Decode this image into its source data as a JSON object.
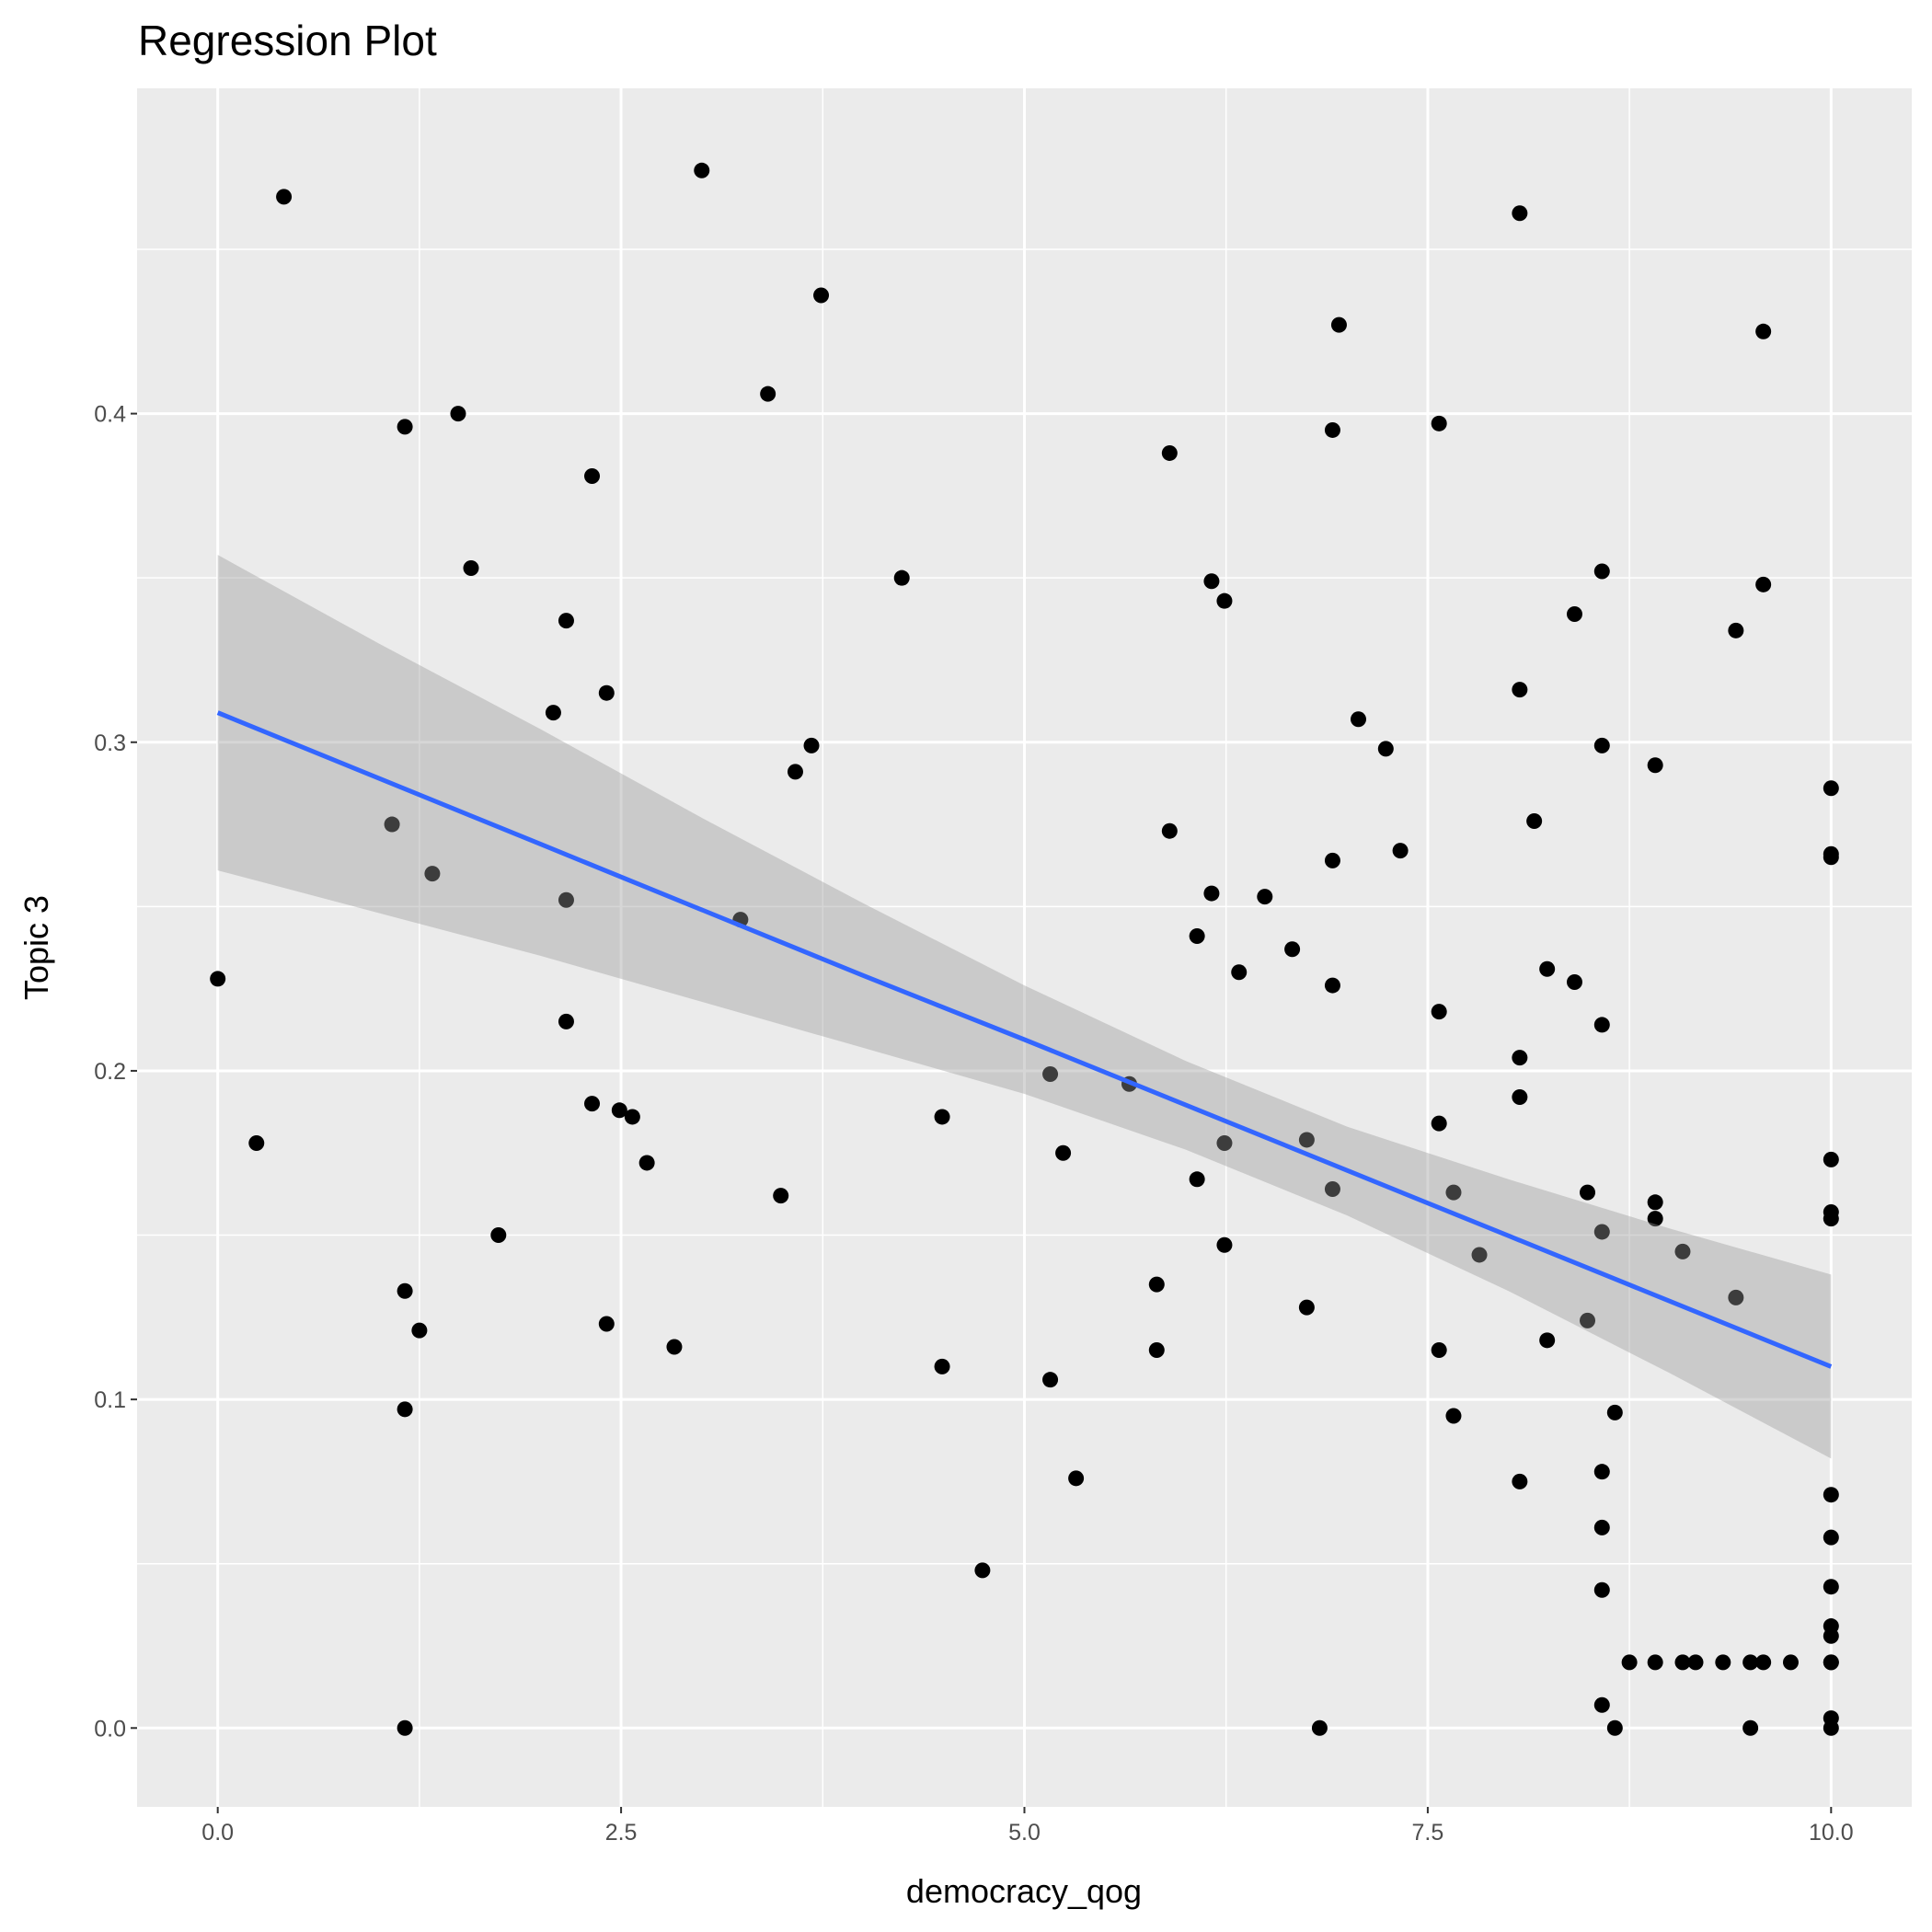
{
  "chart_data": {
    "type": "scatter",
    "title": "Regression Plot",
    "xlabel": "democracy_qog",
    "ylabel": "Topic 3",
    "xlim": [
      -0.5,
      10.5
    ],
    "ylim": [
      -0.024,
      0.499
    ],
    "x_ticks": [
      0,
      2.5,
      5,
      7.5,
      10
    ],
    "x_tick_labels": [
      "0.0",
      "2.5",
      "5.0",
      "7.5",
      "10.0"
    ],
    "y_ticks": [
      0,
      0.1,
      0.2,
      0.3,
      0.4
    ],
    "y_tick_labels": [
      "0.0",
      "0.1",
      "0.2",
      "0.3",
      "0.4"
    ],
    "grid": true,
    "colors": {
      "panel": "#ebebeb",
      "grid": "#ffffff",
      "point": "#000000",
      "line": "#3366ff",
      "ribbon": "#999999"
    },
    "points": [
      [
        0.41,
        0.466
      ],
      [
        3.0,
        0.474
      ],
      [
        3.74,
        0.436
      ],
      [
        3.41,
        0.406
      ],
      [
        1.16,
        0.396
      ],
      [
        1.49,
        0.4
      ],
      [
        2.32,
        0.381
      ],
      [
        1.57,
        0.353
      ],
      [
        2.16,
        0.337
      ],
      [
        2.41,
        0.315
      ],
      [
        2.08,
        0.309
      ],
      [
        3.68,
        0.299
      ],
      [
        3.58,
        0.291
      ],
      [
        1.08,
        0.275
      ],
      [
        1.33,
        0.26
      ],
      [
        2.16,
        0.252
      ],
      [
        3.24,
        0.246
      ],
      [
        4.24,
        0.35
      ],
      [
        0.0,
        0.228
      ],
      [
        0.24,
        0.178
      ],
      [
        2.16,
        0.215
      ],
      [
        2.32,
        0.19
      ],
      [
        2.49,
        0.188
      ],
      [
        2.57,
        0.186
      ],
      [
        2.66,
        0.172
      ],
      [
        3.49,
        0.162
      ],
      [
        1.74,
        0.15
      ],
      [
        1.16,
        0.133
      ],
      [
        1.25,
        0.121
      ],
      [
        2.41,
        0.123
      ],
      [
        2.83,
        0.116
      ],
      [
        1.16,
        0.097
      ],
      [
        1.16,
        0.0
      ],
      [
        4.49,
        0.186
      ],
      [
        4.49,
        0.11
      ],
      [
        4.74,
        0.048
      ],
      [
        5.16,
        0.199
      ],
      [
        5.24,
        0.175
      ],
      [
        5.16,
        0.106
      ],
      [
        5.32,
        0.076
      ],
      [
        5.65,
        0.196
      ],
      [
        5.9,
        0.388
      ],
      [
        5.9,
        0.273
      ],
      [
        6.16,
        0.349
      ],
      [
        6.24,
        0.343
      ],
      [
        6.16,
        0.254
      ],
      [
        6.07,
        0.241
      ],
      [
        6.33,
        0.23
      ],
      [
        6.49,
        0.253
      ],
      [
        6.66,
        0.237
      ],
      [
        6.24,
        0.178
      ],
      [
        6.07,
        0.167
      ],
      [
        6.24,
        0.147
      ],
      [
        5.82,
        0.135
      ],
      [
        5.82,
        0.115
      ],
      [
        6.75,
        0.179
      ],
      [
        6.75,
        0.128
      ],
      [
        6.83,
        0.0
      ],
      [
        6.95,
        0.427
      ],
      [
        6.91,
        0.395
      ],
      [
        6.91,
        0.264
      ],
      [
        6.91,
        0.226
      ],
      [
        6.91,
        0.164
      ],
      [
        7.07,
        0.307
      ],
      [
        7.24,
        0.298
      ],
      [
        7.33,
        0.267
      ],
      [
        7.57,
        0.397
      ],
      [
        7.57,
        0.218
      ],
      [
        7.57,
        0.184
      ],
      [
        7.66,
        0.163
      ],
      [
        7.82,
        0.144
      ],
      [
        7.57,
        0.115
      ],
      [
        7.66,
        0.095
      ],
      [
        8.07,
        0.461
      ],
      [
        8.07,
        0.316
      ],
      [
        8.16,
        0.276
      ],
      [
        8.24,
        0.231
      ],
      [
        8.41,
        0.227
      ],
      [
        8.07,
        0.204
      ],
      [
        8.07,
        0.192
      ],
      [
        8.41,
        0.339
      ],
      [
        8.58,
        0.352
      ],
      [
        8.58,
        0.299
      ],
      [
        8.58,
        0.214
      ],
      [
        8.49,
        0.163
      ],
      [
        8.58,
        0.151
      ],
      [
        8.49,
        0.124
      ],
      [
        8.24,
        0.118
      ],
      [
        8.66,
        0.096
      ],
      [
        8.07,
        0.075
      ],
      [
        8.58,
        0.078
      ],
      [
        8.58,
        0.061
      ],
      [
        8.58,
        0.042
      ],
      [
        8.58,
        0.007
      ],
      [
        8.66,
        0.0
      ],
      [
        8.75,
        0.02
      ],
      [
        8.91,
        0.02
      ],
      [
        9.08,
        0.02
      ],
      [
        9.16,
        0.02
      ],
      [
        9.33,
        0.02
      ],
      [
        9.5,
        0.02
      ],
      [
        9.58,
        0.02
      ],
      [
        9.75,
        0.02
      ],
      [
        9.5,
        0.0
      ],
      [
        8.91,
        0.293
      ],
      [
        8.91,
        0.16
      ],
      [
        8.91,
        0.155
      ],
      [
        9.08,
        0.145
      ],
      [
        9.41,
        0.334
      ],
      [
        9.58,
        0.425
      ],
      [
        9.58,
        0.348
      ],
      [
        9.41,
        0.131
      ],
      [
        10,
        0.286
      ],
      [
        10,
        0.266
      ],
      [
        10,
        0.265
      ],
      [
        10,
        0.173
      ],
      [
        10,
        0.157
      ],
      [
        10,
        0.155
      ],
      [
        10,
        0.071
      ],
      [
        10,
        0.058
      ],
      [
        10,
        0.043
      ],
      [
        10,
        0.031
      ],
      [
        10,
        0.028
      ],
      [
        10,
        0.02
      ],
      [
        10,
        0.02
      ],
      [
        10,
        0.003
      ],
      [
        10,
        0.0
      ]
    ],
    "fit": {
      "x": [
        0,
        1,
        2,
        3,
        4,
        5,
        6,
        7,
        8,
        9,
        10
      ],
      "y": [
        0.309,
        0.289,
        0.269,
        0.249,
        0.229,
        0.2095,
        0.1896,
        0.1697,
        0.1498,
        0.1299,
        0.11
      ],
      "lower": [
        0.261,
        0.248,
        0.235,
        0.221,
        0.207,
        0.193,
        0.176,
        0.156,
        0.133,
        0.108,
        0.082
      ],
      "upper": [
        0.357,
        0.33,
        0.304,
        0.277,
        0.251,
        0.226,
        0.203,
        0.183,
        0.167,
        0.152,
        0.138
      ]
    }
  }
}
